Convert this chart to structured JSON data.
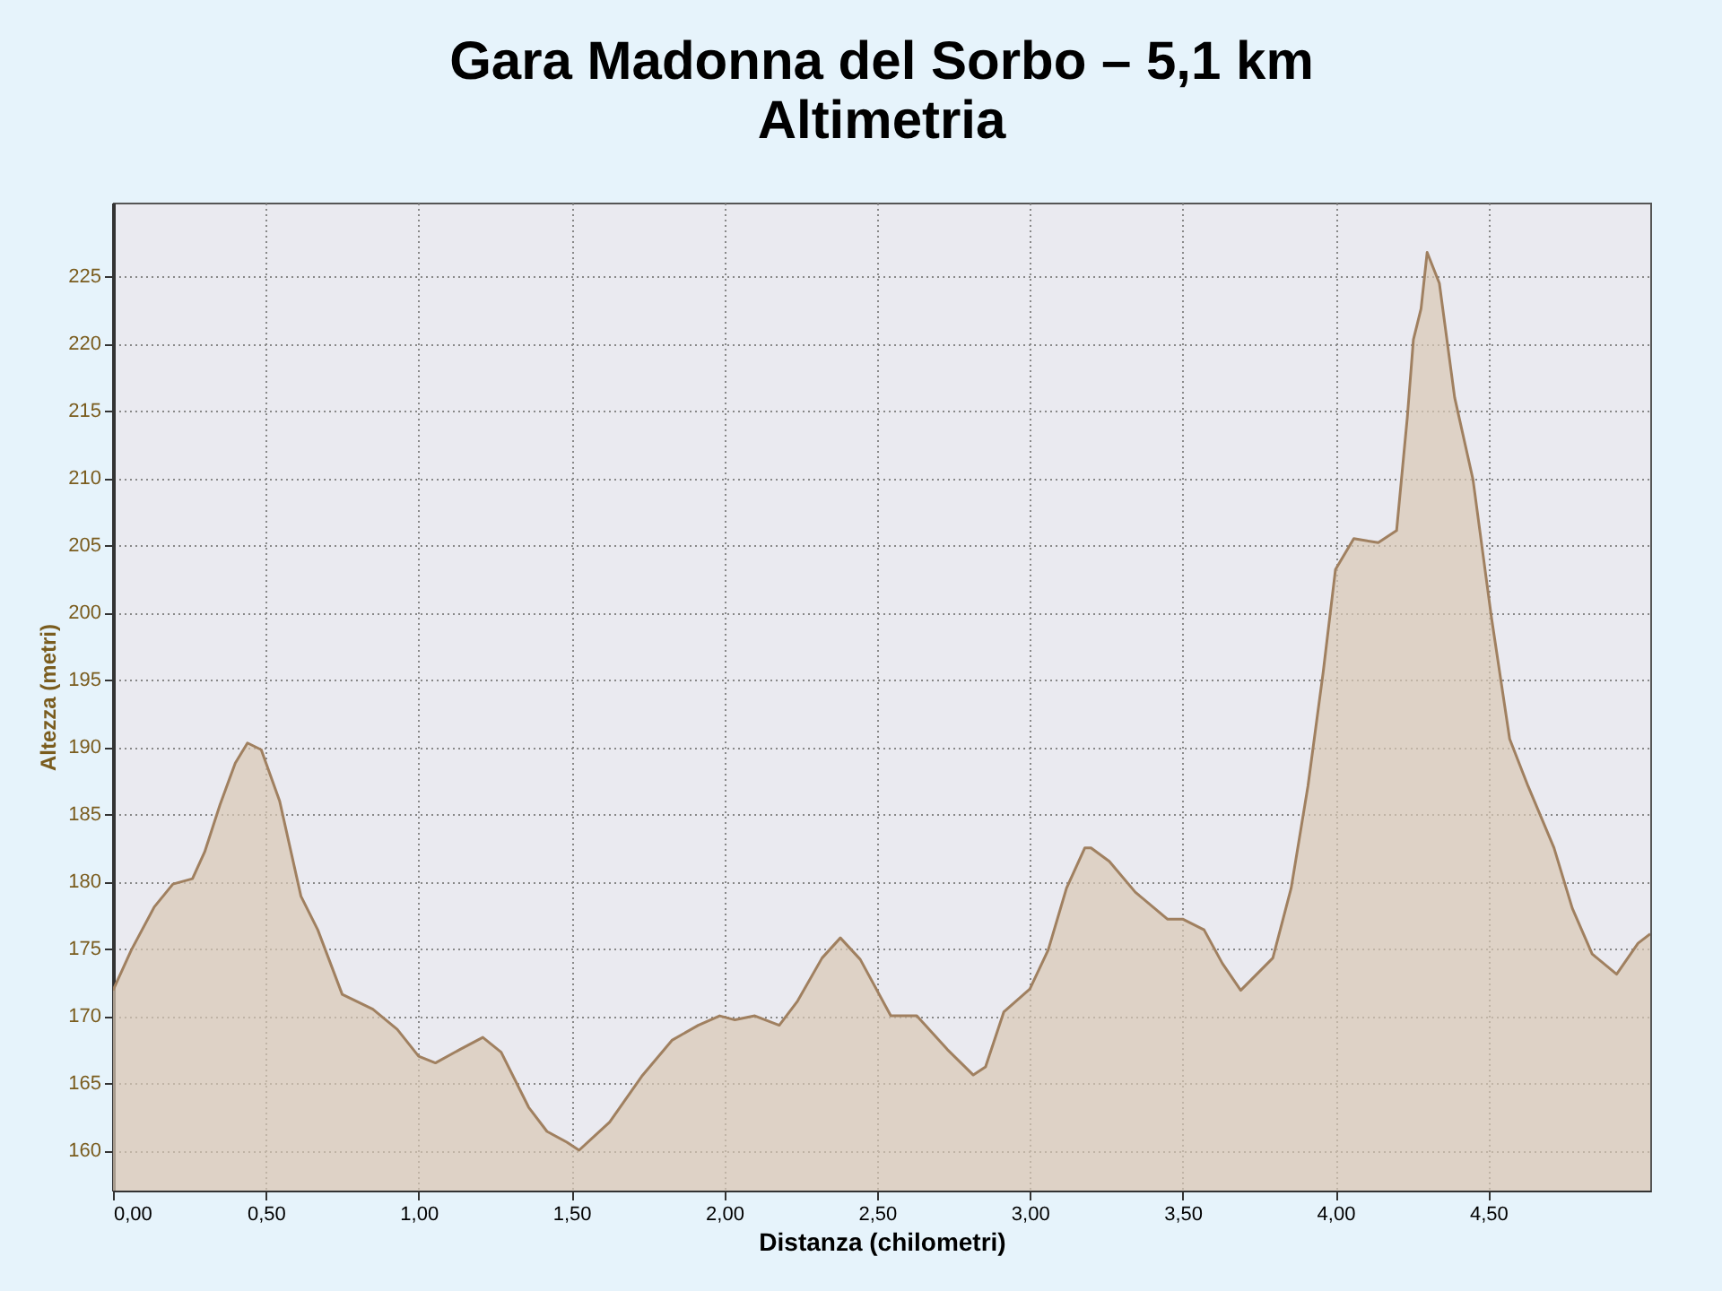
{
  "chart_data": {
    "type": "area",
    "title": "Gara Madonna del Sorbo – 5,1 km",
    "subtitle": "Altimetria",
    "xlabel": "Distanza (chilometri)",
    "ylabel": "Altezza (metri)",
    "x": [
      0,
      0.06,
      0.135,
      0.196,
      0.26,
      0.3,
      0.35,
      0.4,
      0.44,
      0.485,
      0.545,
      0.615,
      0.67,
      0.75,
      0.85,
      0.93,
      1.0,
      1.055,
      1.135,
      1.21,
      1.27,
      1.36,
      1.42,
      1.485,
      1.525,
      1.625,
      1.73,
      1.83,
      1.915,
      1.985,
      2.035,
      2.1,
      2.18,
      2.24,
      2.32,
      2.38,
      2.445,
      2.545,
      2.63,
      2.73,
      2.815,
      2.855,
      2.915,
      3.0,
      3.06,
      3.12,
      3.18,
      3.2,
      3.26,
      3.345,
      3.45,
      3.5,
      3.57,
      3.63,
      3.69,
      3.795,
      3.855,
      3.91,
      3.96,
      4.0,
      4.06,
      4.14,
      4.2,
      4.235,
      4.255,
      4.28,
      4.3,
      4.34,
      4.39,
      4.45,
      4.51,
      4.57,
      4.63,
      4.715,
      4.775,
      4.84,
      4.92,
      4.99,
      5.03
    ],
    "series": [
      {
        "color": "#d8c8b4",
        "values": [
          171.9,
          174.9,
          178.1,
          179.8,
          180.2,
          182.2,
          185.7,
          188.8,
          190.3,
          189.8,
          186,
          178.9,
          176.4,
          171.6,
          170.5,
          169,
          167,
          166.5,
          167.5,
          168.4,
          167.3,
          163.2,
          161.4,
          160.6,
          160,
          162.1,
          165.5,
          168.2,
          169.3,
          170,
          169.7,
          170,
          169.3,
          171.1,
          174.3,
          175.8,
          174.2,
          170,
          170,
          167.5,
          165.6,
          166.2,
          170.3,
          172,
          174.9,
          179.5,
          182.5,
          182.5,
          181.5,
          179.2,
          177.2,
          177.2,
          176.4,
          173.9,
          171.9,
          174.3,
          179.5,
          187.1,
          195.6,
          203.2,
          205.5,
          205.2,
          206.1,
          214.5,
          220.3,
          222.6,
          226.8,
          224.5,
          216,
          209.9,
          199.7,
          190.6,
          187.1,
          182.5,
          178,
          174.6,
          173.1,
          175.4,
          176.1
        ]
      }
    ],
    "xlim": [
      0,
      5.03
    ],
    "ylim": [
      157,
      230.5
    ],
    "xticks": [
      {
        "value": 0,
        "label": "0,00"
      },
      {
        "value": 0.5,
        "label": "0,50"
      },
      {
        "value": 1,
        "label": "1,00"
      },
      {
        "value": 1.5,
        "label": "1,50"
      },
      {
        "value": 2,
        "label": "2,00"
      },
      {
        "value": 2.5,
        "label": "2,50"
      },
      {
        "value": 3,
        "label": "3,00"
      },
      {
        "value": 3.5,
        "label": "3,50"
      },
      {
        "value": 4,
        "label": "4,00"
      },
      {
        "value": 4.5,
        "label": "4,50"
      }
    ],
    "yticks": [
      160,
      165,
      170,
      175,
      180,
      185,
      190,
      195,
      200,
      205,
      210,
      215,
      220,
      225
    ],
    "grid": true,
    "line_style": "solid",
    "marker": "none"
  }
}
